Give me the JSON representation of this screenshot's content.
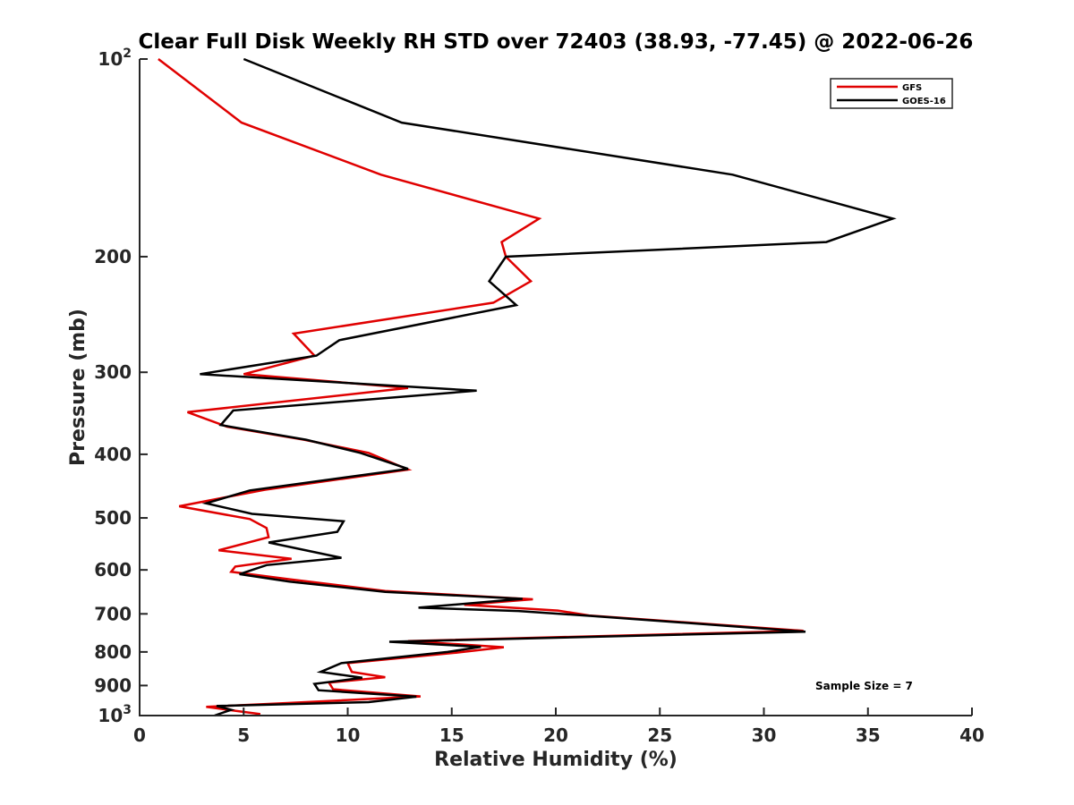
{
  "chart_data": {
    "type": "line",
    "title": "Clear Full Disk Weekly RH STD over 72403 (38.93, -77.45) @ 2022-06-26",
    "xlabel": "Relative Humidity (%)",
    "ylabel": "Pressure (mb)",
    "xlim": [
      0,
      40
    ],
    "ylim": [
      100,
      1000
    ],
    "yscale": "log",
    "y_reversed": true,
    "grid": false,
    "legend_position": "top-right",
    "x_ticks": [
      0,
      5,
      10,
      15,
      20,
      25,
      30,
      35,
      40
    ],
    "x_tick_labels": [
      "0",
      "5",
      "10",
      "15",
      "20",
      "25",
      "30",
      "35",
      "40"
    ],
    "y_ticks": [
      100,
      200,
      300,
      400,
      500,
      600,
      700,
      800,
      900,
      1000
    ],
    "y_tick_labels": [
      {
        "base": "10",
        "exp": "2"
      },
      {
        "base": "200",
        "exp": ""
      },
      {
        "base": "300",
        "exp": ""
      },
      {
        "base": "400",
        "exp": ""
      },
      {
        "base": "500",
        "exp": ""
      },
      {
        "base": "600",
        "exp": ""
      },
      {
        "base": "700",
        "exp": ""
      },
      {
        "base": "800",
        "exp": ""
      },
      {
        "base": "900",
        "exp": ""
      },
      {
        "base": "10",
        "exp": "3"
      }
    ],
    "annotation": "Sample Size = 7",
    "series": [
      {
        "name": "GFS",
        "color": "#e00000",
        "points": [
          [
            0.9,
            100
          ],
          [
            4.9,
            125
          ],
          [
            11.6,
            150
          ],
          [
            19.2,
            175
          ],
          [
            17.4,
            190
          ],
          [
            17.6,
            200
          ],
          [
            18.8,
            218
          ],
          [
            17.0,
            235
          ],
          [
            7.4,
            262
          ],
          [
            8.4,
            283
          ],
          [
            5.0,
            302
          ],
          [
            12.9,
            317
          ],
          [
            2.3,
            345
          ],
          [
            4.2,
            363
          ],
          [
            7.9,
            380
          ],
          [
            11.0,
            398
          ],
          [
            12.9,
            422
          ],
          [
            6.0,
            453
          ],
          [
            1.9,
            480
          ],
          [
            5.3,
            502
          ],
          [
            6.1,
            518
          ],
          [
            6.2,
            535
          ],
          [
            3.8,
            560
          ],
          [
            7.3,
            577
          ],
          [
            4.6,
            593
          ],
          [
            4.4,
            604
          ],
          [
            7.2,
            620
          ],
          [
            11.8,
            646
          ],
          [
            18.9,
            665
          ],
          [
            15.6,
            678
          ],
          [
            20.1,
            692
          ],
          [
            21.6,
            704
          ],
          [
            31.9,
            743
          ],
          [
            12.9,
            770
          ],
          [
            17.5,
            787
          ],
          [
            15.2,
            802
          ],
          [
            10.0,
            832
          ],
          [
            10.2,
            858
          ],
          [
            11.8,
            874
          ],
          [
            9.1,
            891
          ],
          [
            9.3,
            912
          ],
          [
            13.5,
            935
          ],
          [
            7.1,
            957
          ],
          [
            3.2,
            970
          ],
          [
            5.8,
            995
          ]
        ]
      },
      {
        "name": "GOES-16",
        "color": "#000000",
        "points": [
          [
            5.0,
            100
          ],
          [
            12.6,
            125
          ],
          [
            28.5,
            150
          ],
          [
            36.2,
            175
          ],
          [
            33.0,
            190
          ],
          [
            17.6,
            200
          ],
          [
            16.8,
            218
          ],
          [
            18.1,
            237
          ],
          [
            9.6,
            268
          ],
          [
            8.5,
            283
          ],
          [
            2.9,
            302
          ],
          [
            16.2,
            320
          ],
          [
            4.5,
            343
          ],
          [
            3.9,
            361
          ],
          [
            8.0,
            380
          ],
          [
            10.6,
            398
          ],
          [
            12.9,
            421
          ],
          [
            5.3,
            454
          ],
          [
            3.2,
            475
          ],
          [
            5.4,
            493
          ],
          [
            9.8,
            506
          ],
          [
            9.5,
            525
          ],
          [
            6.2,
            545
          ],
          [
            9.7,
            575
          ],
          [
            6.1,
            590
          ],
          [
            4.8,
            609
          ],
          [
            7.2,
            625
          ],
          [
            11.8,
            648
          ],
          [
            18.4,
            664
          ],
          [
            13.4,
            685
          ],
          [
            18.2,
            693
          ],
          [
            21.7,
            705
          ],
          [
            32.0,
            745
          ],
          [
            12.0,
            772
          ],
          [
            16.4,
            786
          ],
          [
            14.8,
            800
          ],
          [
            9.7,
            832
          ],
          [
            8.7,
            858
          ],
          [
            10.7,
            876
          ],
          [
            8.4,
            895
          ],
          [
            8.6,
            915
          ],
          [
            13.3,
            936
          ],
          [
            11.0,
            954
          ],
          [
            3.7,
            967
          ],
          [
            4.4,
            980
          ],
          [
            3.6,
            1000
          ]
        ]
      }
    ]
  }
}
